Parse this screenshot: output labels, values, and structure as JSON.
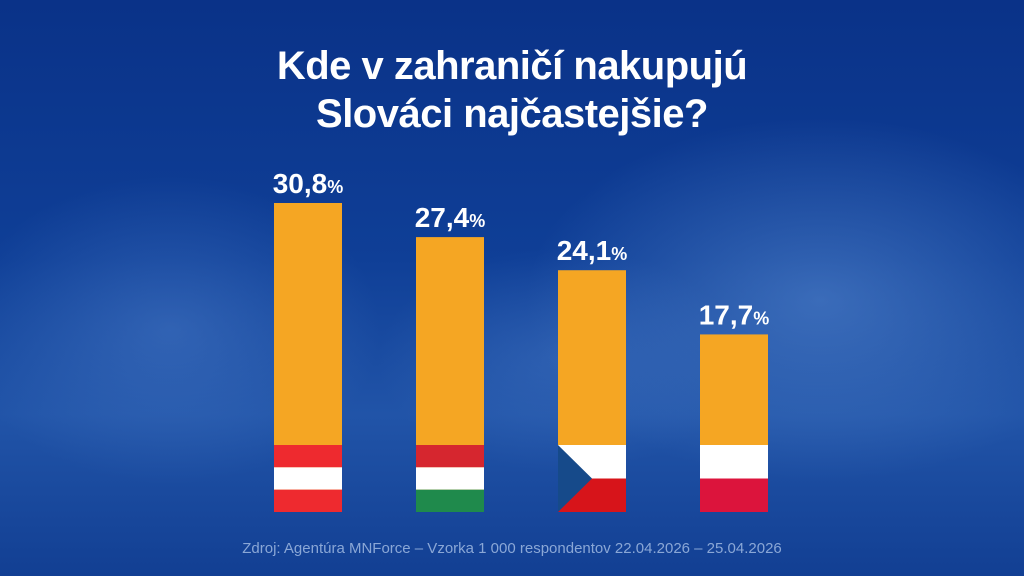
{
  "chart_data": {
    "type": "bar",
    "title_lines": [
      "Kde v zahraničí nakupujú",
      "Slováci najčastejšie?"
    ],
    "categories": [
      "Rakúsko",
      "Maďarsko",
      "Česko",
      "Poľsko"
    ],
    "values": [
      30.8,
      27.4,
      24.1,
      17.7
    ],
    "value_labels": [
      "30,8",
      "27,4",
      "24,1",
      "17,7"
    ],
    "unit": "%",
    "ylim": [
      0,
      30.8
    ],
    "bar_color": "#f5a623",
    "flags": [
      "austria-flag",
      "hungary-flag",
      "czech-flag",
      "poland-flag"
    ],
    "grid": false,
    "legend": "none"
  },
  "source": "Zdroj: Agentúra MNForce – Vzorka 1 000 respondentov 22.04.2026 – 25.04.2026",
  "colors": {
    "red_at": "#ee2a2f",
    "red_hu": "#d6262f",
    "green_hu": "#1f8a4c",
    "blue_cz": "#164a8a",
    "red_cz": "#d7141a",
    "red_pl": "#dc143c",
    "white": "#ffffff"
  }
}
